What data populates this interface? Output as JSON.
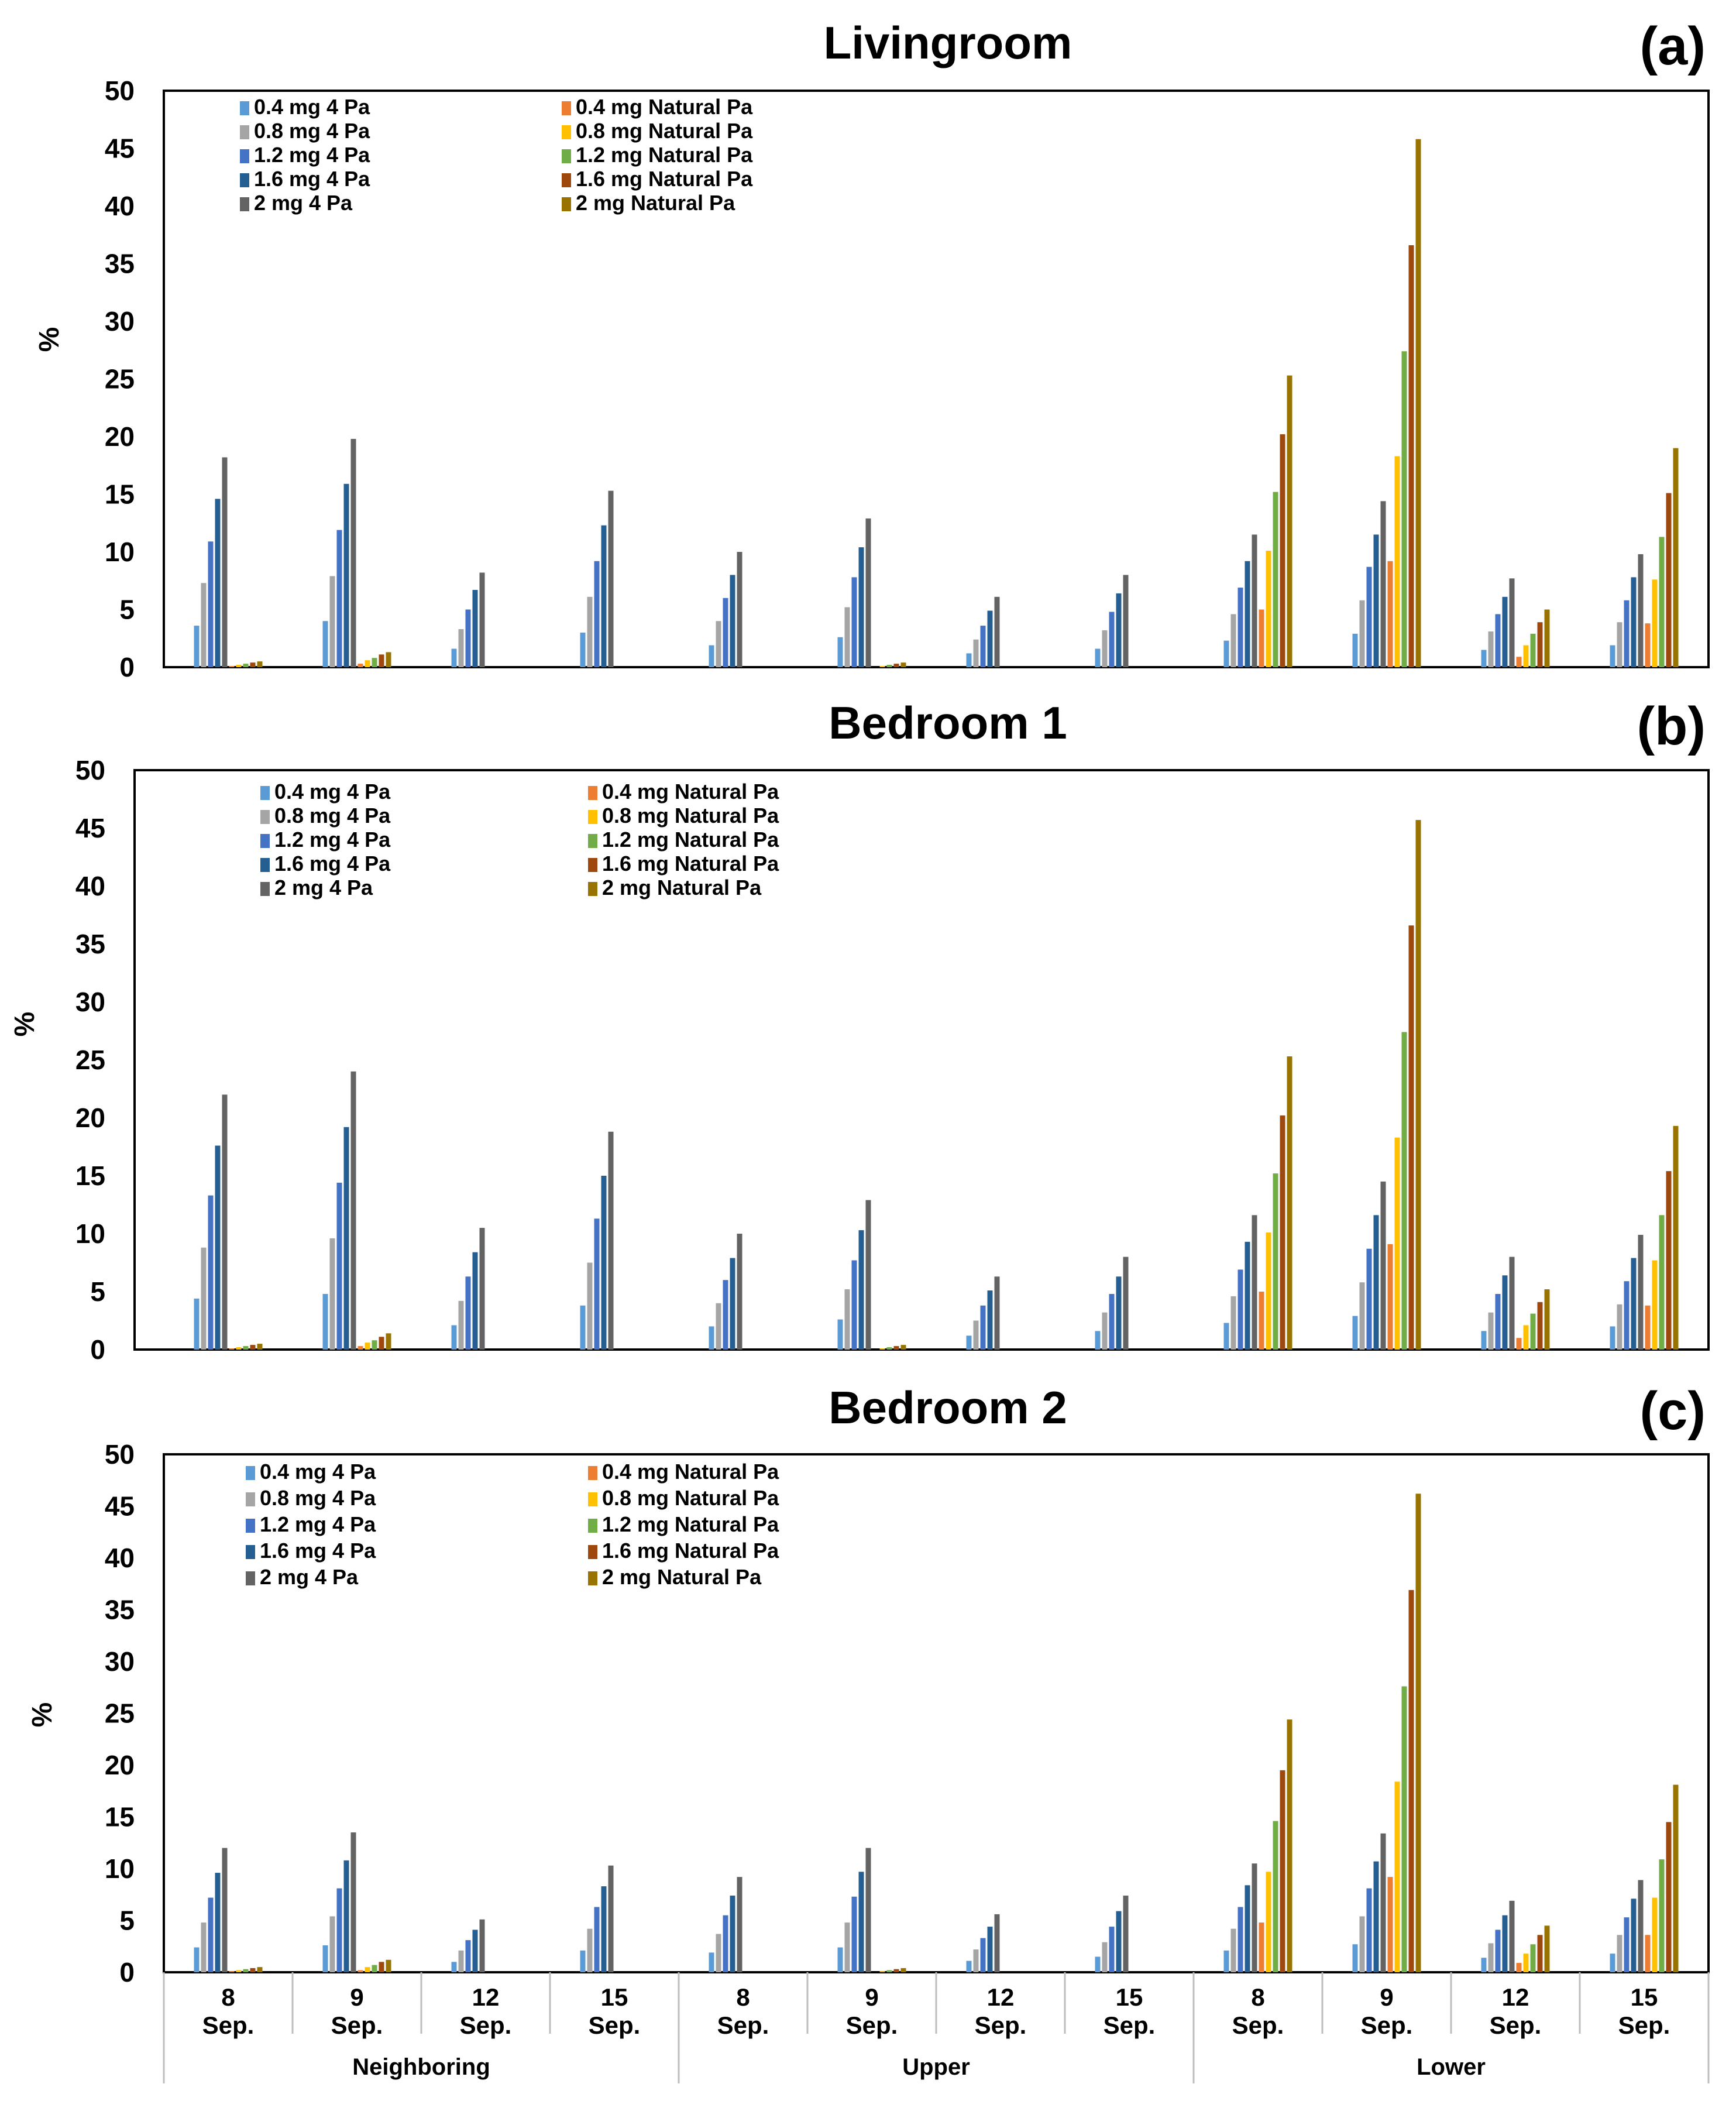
{
  "figure": {
    "series_names": [
      "0.4 mg 4 Pa",
      "0.8 mg 4 Pa",
      "1.2 mg 4 Pa",
      "1.6 mg 4 Pa",
      "2 mg 4 Pa",
      "0.4 mg Natural Pa",
      "0.8 mg Natural Pa",
      "1.2 mg Natural Pa",
      "1.6 mg Natural Pa",
      "2 mg Natural Pa"
    ],
    "series_colors": [
      "#5b9bd5",
      "#a5a5a5",
      "#4472c4",
      "#255e91",
      "#636363",
      "#ed7d31",
      "#ffc000",
      "#70ad47",
      "#9e480e",
      "#997300"
    ],
    "groups": [
      "Neighboring",
      "Upper",
      "Lower"
    ],
    "date_top": [
      "8",
      "9",
      "12",
      "15",
      "8",
      "9",
      "12",
      "15",
      "8",
      "9",
      "12",
      "15"
    ],
    "date_bottom": [
      "Sep.",
      "Sep.",
      "Sep.",
      "Sep.",
      "Sep.",
      "Sep.",
      "Sep.",
      "Sep.",
      "Sep.",
      "Sep.",
      "Sep.",
      "Sep."
    ]
  },
  "chart_data": [
    {
      "type": "bar",
      "title": "Livingroom",
      "panel_label": "(a)",
      "ylabel": "%",
      "ylim": [
        0,
        50
      ],
      "yticks": [
        0,
        5,
        10,
        15,
        20,
        25,
        30,
        35,
        40,
        45,
        50
      ],
      "categories": [
        "8 Sep.",
        "9 Sep.",
        "12 Sep.",
        "15 Sep.",
        "8 Sep.",
        "9 Sep.",
        "12 Sep.",
        "15 Sep.",
        "8 Sep.",
        "9 Sep.",
        "12 Sep.",
        "15 Sep."
      ],
      "groups": [
        "Neighboring",
        "Upper",
        "Lower"
      ],
      "series": [
        {
          "name": "0.4 mg 4 Pa",
          "values": [
            3.6,
            4.0,
            1.6,
            3.0,
            1.9,
            2.6,
            1.2,
            1.6,
            2.3,
            2.9,
            1.5,
            1.9
          ]
        },
        {
          "name": "0.8 mg 4 Pa",
          "values": [
            7.3,
            7.9,
            3.3,
            6.1,
            4.0,
            5.2,
            2.4,
            3.2,
            4.6,
            5.8,
            3.1,
            3.9
          ]
        },
        {
          "name": "1.2 mg 4 Pa",
          "values": [
            10.9,
            11.9,
            5.0,
            9.2,
            6.0,
            7.8,
            3.6,
            4.8,
            6.9,
            8.7,
            4.6,
            5.8
          ]
        },
        {
          "name": "1.6 mg 4 Pa",
          "values": [
            14.6,
            15.9,
            6.7,
            12.3,
            8.0,
            10.4,
            4.9,
            6.4,
            9.2,
            11.5,
            6.1,
            7.8
          ]
        },
        {
          "name": "2 mg 4 Pa",
          "values": [
            18.2,
            19.8,
            8.2,
            15.3,
            10.0,
            12.9,
            6.1,
            8.0,
            11.5,
            14.4,
            7.7,
            9.8
          ]
        },
        {
          "name": "0.4 mg Natural Pa",
          "values": [
            0.1,
            0.3,
            0,
            0,
            0,
            0,
            0,
            0,
            5.0,
            9.2,
            0.9,
            3.8
          ]
        },
        {
          "name": "0.8 mg Natural Pa",
          "values": [
            0.2,
            0.6,
            0,
            0,
            0,
            0.1,
            0,
            0,
            10.1,
            18.3,
            1.9,
            7.6
          ]
        },
        {
          "name": "1.2 mg Natural Pa",
          "values": [
            0.3,
            0.8,
            0,
            0,
            0,
            0.2,
            0,
            0,
            15.2,
            27.4,
            2.9,
            11.3
          ]
        },
        {
          "name": "1.6 mg Natural Pa",
          "values": [
            0.4,
            1.1,
            0,
            0,
            0,
            0.3,
            0,
            0,
            20.2,
            36.6,
            3.9,
            15.1
          ]
        },
        {
          "name": "2 mg Natural Pa",
          "values": [
            0.5,
            1.3,
            0,
            0,
            0,
            0.4,
            0,
            0,
            25.3,
            45.8,
            5.0,
            19.0
          ]
        }
      ]
    },
    {
      "type": "bar",
      "title": "Bedroom 1",
      "panel_label": "(b)",
      "ylabel": "%",
      "ylim": [
        0,
        50
      ],
      "yticks": [
        0,
        5,
        10,
        15,
        20,
        25,
        30,
        35,
        40,
        45,
        50
      ],
      "categories": [
        "8 Sep.",
        "9 Sep.",
        "12 Sep.",
        "15 Sep.",
        "8 Sep.",
        "9 Sep.",
        "12 Sep.",
        "15 Sep.",
        "8 Sep.",
        "9 Sep.",
        "12 Sep.",
        "15 Sep."
      ],
      "groups": [
        "Neighboring",
        "Upper",
        "Lower"
      ],
      "series": [
        {
          "name": "0.4 mg 4 Pa",
          "values": [
            4.4,
            4.8,
            2.1,
            3.8,
            2.0,
            2.6,
            1.2,
            1.6,
            2.3,
            2.9,
            1.6,
            2.0
          ]
        },
        {
          "name": "0.8 mg 4 Pa",
          "values": [
            8.8,
            9.6,
            4.2,
            7.5,
            4.0,
            5.2,
            2.5,
            3.2,
            4.6,
            5.8,
            3.2,
            3.9
          ]
        },
        {
          "name": "1.2 mg 4 Pa",
          "values": [
            13.3,
            14.4,
            6.3,
            11.3,
            6.0,
            7.7,
            3.8,
            4.8,
            6.9,
            8.7,
            4.8,
            5.9
          ]
        },
        {
          "name": "1.6 mg 4 Pa",
          "values": [
            17.6,
            19.2,
            8.4,
            15.0,
            7.9,
            10.3,
            5.1,
            6.3,
            9.3,
            11.6,
            6.4,
            7.9
          ]
        },
        {
          "name": "2 mg 4 Pa",
          "values": [
            22.0,
            24.0,
            10.5,
            18.8,
            10.0,
            12.9,
            6.3,
            8.0,
            11.6,
            14.5,
            8.0,
            9.9
          ]
        },
        {
          "name": "0.4 mg Natural Pa",
          "values": [
            0.1,
            0.3,
            0,
            0,
            0,
            0,
            0,
            0,
            5.0,
            9.1,
            1.0,
            3.8
          ]
        },
        {
          "name": "0.8 mg Natural Pa",
          "values": [
            0.2,
            0.6,
            0,
            0,
            0,
            0.1,
            0,
            0,
            10.1,
            18.3,
            2.1,
            7.7
          ]
        },
        {
          "name": "1.2 mg Natural Pa",
          "values": [
            0.3,
            0.8,
            0,
            0,
            0,
            0.2,
            0,
            0,
            15.2,
            27.4,
            3.1,
            11.6
          ]
        },
        {
          "name": "1.6 mg Natural Pa",
          "values": [
            0.4,
            1.1,
            0,
            0,
            0,
            0.3,
            0,
            0,
            20.2,
            36.6,
            4.1,
            15.4
          ]
        },
        {
          "name": "2 mg Natural Pa",
          "values": [
            0.5,
            1.4,
            0,
            0,
            0,
            0.4,
            0,
            0,
            25.3,
            45.7,
            5.2,
            19.3
          ]
        }
      ]
    },
    {
      "type": "bar",
      "title": "Bedroom 2",
      "panel_label": "(c)",
      "ylabel": "%",
      "ylim": [
        0,
        50
      ],
      "yticks": [
        0,
        5,
        10,
        15,
        20,
        25,
        30,
        35,
        40,
        45,
        50
      ],
      "categories": [
        "8 Sep.",
        "9 Sep.",
        "12 Sep.",
        "15 Sep.",
        "8 Sep.",
        "9 Sep.",
        "12 Sep.",
        "15 Sep.",
        "8 Sep.",
        "9 Sep.",
        "12 Sep.",
        "15 Sep."
      ],
      "groups": [
        "Neighboring",
        "Upper",
        "Lower"
      ],
      "series": [
        {
          "name": "0.4 mg 4 Pa",
          "values": [
            2.4,
            2.6,
            1.0,
            2.1,
            1.9,
            2.4,
            1.1,
            1.5,
            2.1,
            2.7,
            1.4,
            1.8
          ]
        },
        {
          "name": "0.8 mg 4 Pa",
          "values": [
            4.8,
            5.4,
            2.1,
            4.2,
            3.7,
            4.8,
            2.2,
            2.9,
            4.2,
            5.4,
            2.8,
            3.6
          ]
        },
        {
          "name": "1.2 mg 4 Pa",
          "values": [
            7.2,
            8.1,
            3.1,
            6.3,
            5.5,
            7.3,
            3.3,
            4.4,
            6.3,
            8.1,
            4.1,
            5.3
          ]
        },
        {
          "name": "1.6 mg 4 Pa",
          "values": [
            9.6,
            10.8,
            4.1,
            8.3,
            7.4,
            9.7,
            4.4,
            5.9,
            8.4,
            10.7,
            5.5,
            7.1
          ]
        },
        {
          "name": "2 mg 4 Pa",
          "values": [
            12.0,
            13.5,
            5.1,
            10.3,
            9.2,
            12.0,
            5.6,
            7.4,
            10.5,
            13.4,
            6.9,
            8.9
          ]
        },
        {
          "name": "0.4 mg Natural Pa",
          "values": [
            0.1,
            0.2,
            0,
            0,
            0,
            0,
            0,
            0,
            4.8,
            9.2,
            0.9,
            3.6
          ]
        },
        {
          "name": "0.8 mg Natural Pa",
          "values": [
            0.2,
            0.5,
            0,
            0,
            0,
            0.1,
            0,
            0,
            9.7,
            18.4,
            1.8,
            7.2
          ]
        },
        {
          "name": "1.2 mg Natural Pa",
          "values": [
            0.3,
            0.7,
            0,
            0,
            0,
            0.2,
            0,
            0,
            14.6,
            27.6,
            2.7,
            10.9
          ]
        },
        {
          "name": "1.6 mg Natural Pa",
          "values": [
            0.4,
            1.0,
            0,
            0,
            0,
            0.3,
            0,
            0,
            19.5,
            36.9,
            3.6,
            14.5
          ]
        },
        {
          "name": "2 mg Natural Pa",
          "values": [
            0.5,
            1.2,
            0,
            0,
            0,
            0.4,
            0,
            0,
            24.4,
            46.2,
            4.5,
            18.1
          ]
        }
      ]
    }
  ]
}
